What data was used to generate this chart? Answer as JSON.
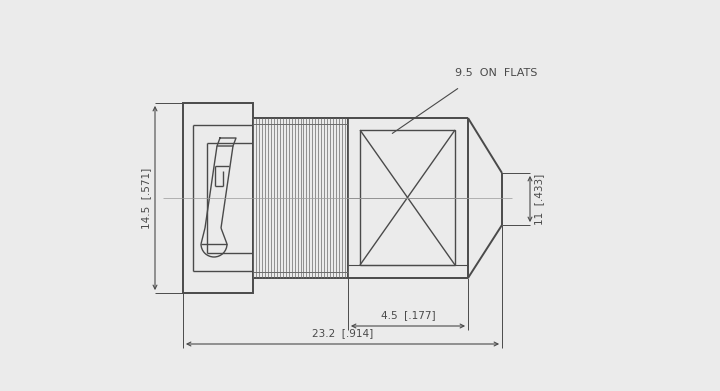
{
  "bg_color": "#ebebeb",
  "line_color": "#4a4a4a",
  "dim_color": "#4a4a4a",
  "label_9_5_on_flats": "9.5  ON  FLATS",
  "label_14_5": "14.5  [.571]",
  "label_11": "11  [.433]",
  "label_4_5": "4.5  [.177]",
  "label_23_2": "23.2  [.914]",
  "fig_width": 7.2,
  "fig_height": 3.91,
  "dpi": 100
}
